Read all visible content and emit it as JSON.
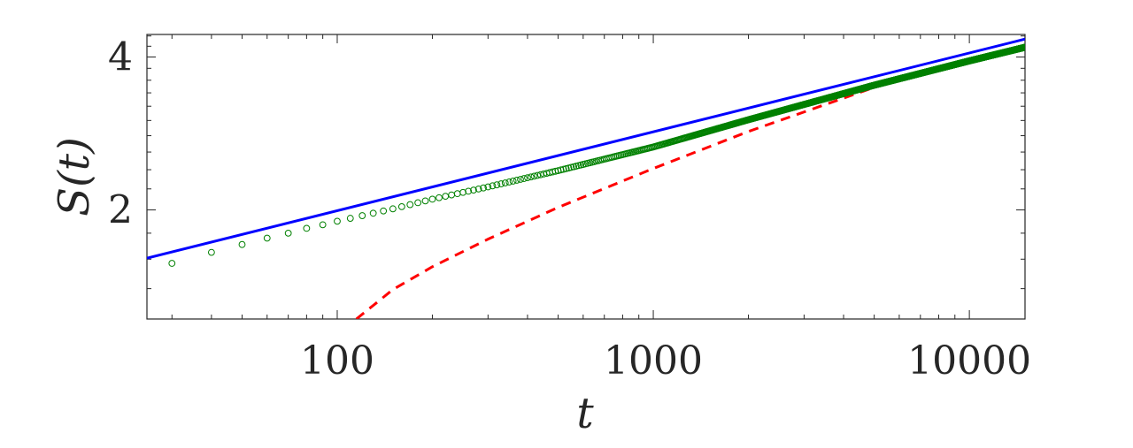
{
  "chart_data": {
    "type": "line",
    "xlabel": "t",
    "ylabel": "S(t)",
    "x_scale": "log",
    "y_scale": "log",
    "xlim": [
      25,
      15000
    ],
    "ylim": [
      1.22,
      4.43
    ],
    "x_ticks": [
      100,
      1000,
      10000
    ],
    "x_tick_labels": [
      "100",
      "1000",
      "10000"
    ],
    "y_ticks": [
      2,
      4
    ],
    "y_tick_labels": [
      "2",
      "4"
    ],
    "grid": false,
    "series": [
      {
        "style": "solid",
        "color": "#0000ff",
        "x": [
          25,
          15000
        ],
        "y": [
          1.607,
          4.338
        ]
      },
      {
        "style": "dashed",
        "color": "#ff0000",
        "x": [
          115,
          150,
          200,
          300,
          500,
          1000,
          2000,
          5000,
          10000,
          15000
        ],
        "y": [
          1.22,
          1.394,
          1.546,
          1.752,
          2.023,
          2.413,
          2.854,
          3.485,
          3.913,
          4.164
        ]
      },
      {
        "style": "markers",
        "color": "#008000",
        "x": [
          30,
          40,
          50,
          60,
          70,
          80,
          90,
          100,
          150,
          200,
          300,
          500,
          1000,
          2000,
          5000,
          10000,
          15000
        ],
        "y": [
          1.57,
          1.65,
          1.71,
          1.76,
          1.8,
          1.84,
          1.87,
          1.9,
          2.01,
          2.1,
          2.22,
          2.39,
          2.66,
          3.01,
          3.52,
          3.93,
          4.18
        ]
      }
    ]
  }
}
